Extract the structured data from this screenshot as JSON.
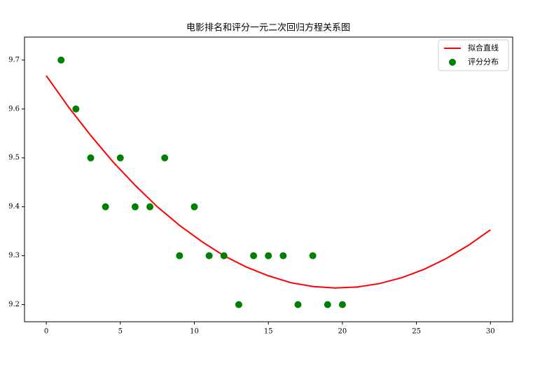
{
  "chart_data": {
    "type": "combo",
    "title": "电影排名和评分一元二次回归方程关系图",
    "xlim": [
      -1.47,
      31.5
    ],
    "xticks": [
      0,
      5,
      10,
      15,
      20,
      25,
      30
    ],
    "ylim": [
      9.165,
      9.747
    ],
    "yticks": [
      9.2,
      9.3,
      9.4,
      9.5,
      9.6,
      9.7
    ],
    "legend": "upper right",
    "series": [
      {
        "name": "拟合直线",
        "type": "line",
        "color": "#ff0000",
        "x": [
          0,
          1.5,
          3,
          4.5,
          6,
          7.5,
          9,
          10.5,
          12,
          13.5,
          15,
          16.5,
          18,
          19.5,
          21,
          22.5,
          24,
          25.5,
          27,
          28.5,
          30
        ],
        "values": [
          9.668,
          9.604,
          9.546,
          9.492,
          9.444,
          9.4,
          9.362,
          9.329,
          9.3,
          9.277,
          9.259,
          9.245,
          9.237,
          9.234,
          9.236,
          9.243,
          9.255,
          9.272,
          9.294,
          9.321,
          9.353
        ]
      },
      {
        "name": "评分分布",
        "type": "scatter",
        "color": "#008000",
        "x": [
          1,
          2,
          3,
          4,
          5,
          6,
          7,
          8,
          9,
          10,
          11,
          12,
          13,
          14,
          15,
          16,
          17,
          18,
          19,
          20
        ],
        "values": [
          9.7,
          9.6,
          9.5,
          9.4,
          9.5,
          9.4,
          9.4,
          9.5,
          9.3,
          9.4,
          9.3,
          9.3,
          9.2,
          9.3,
          9.3,
          9.3,
          9.2,
          9.3,
          9.2,
          9.2
        ]
      }
    ]
  }
}
